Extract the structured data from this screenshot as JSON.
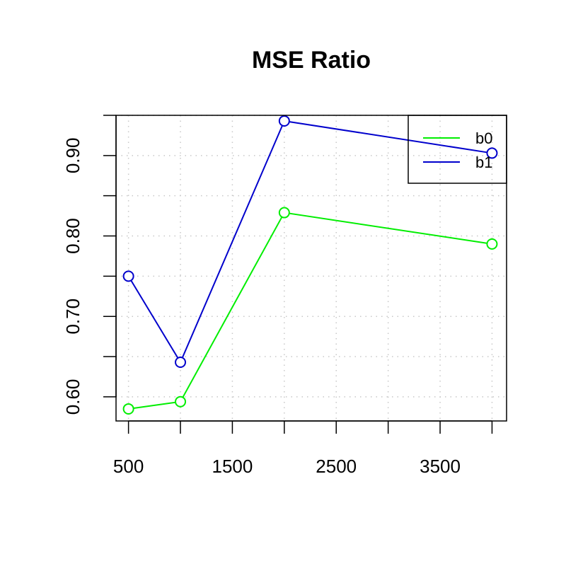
{
  "chart_data": {
    "type": "line",
    "title": "MSE Ratio",
    "xlabel": "",
    "ylabel": "",
    "x": [
      500,
      1000,
      2000,
      4000
    ],
    "xlim": [
      380,
      4140
    ],
    "ylim": [
      0.57,
      0.95
    ],
    "x_ticks": [
      500,
      1000,
      1500,
      2000,
      2500,
      3000,
      3500,
      4000
    ],
    "x_tick_labels": [
      "500",
      "",
      "1500",
      "",
      "2500",
      "",
      "3500",
      ""
    ],
    "y_ticks": [
      0.6,
      0.65,
      0.7,
      0.75,
      0.8,
      0.85,
      0.9,
      0.95
    ],
    "y_tick_labels": [
      "0.60",
      "",
      "0.70",
      "",
      "0.80",
      "",
      "0.90",
      ""
    ],
    "grid": true,
    "legend_position": "top-right",
    "series": [
      {
        "name": "b0",
        "color": "#00ee00",
        "values": [
          0.585,
          0.594,
          0.829,
          0.79
        ]
      },
      {
        "name": "b1",
        "color": "#0000cc",
        "values": [
          0.75,
          0.643,
          0.943,
          0.903
        ]
      }
    ]
  }
}
